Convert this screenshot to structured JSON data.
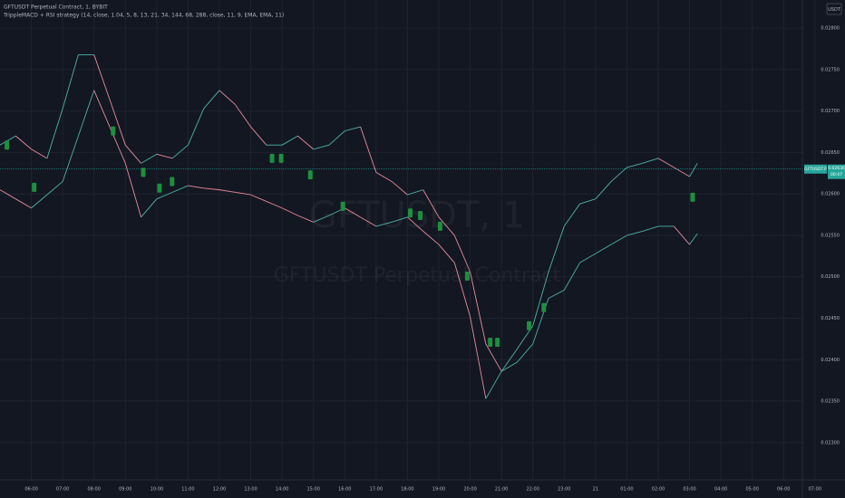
{
  "chart_data": {
    "type": "line",
    "title": "GFTUSDT Perpetual Contract, 1, BYBIT",
    "subtitle": "TrippleMACD + RSI strategy (14, close, 1.04, 5, 8, 13, 21, 34, 144, 68, 288, close, 11, 9, EMA, EMA, 11)",
    "watermark": "GFTUSDT, 1",
    "watermark_sub": "GFTUSDT Perpetual Contract",
    "currency": "USDT",
    "symbol_label": "GFTUSDT.P",
    "last_price": {
      "value": 0.0263,
      "label": "0.02630"
    },
    "countdown": "00:47",
    "x": [
      -1,
      -0.5,
      0,
      0.5,
      1,
      1.5,
      2,
      2.5,
      3,
      3.5,
      4,
      4.5,
      5,
      5.5,
      6,
      6.5,
      7,
      7.5,
      8,
      8.5,
      9,
      9.5,
      10,
      10.5,
      11,
      11.5,
      12,
      12.5,
      13,
      13.5,
      14,
      14.5,
      15,
      15.5,
      16,
      16.5,
      17,
      17.5,
      18,
      18.5,
      19,
      19.5,
      20,
      20.5,
      21,
      21.25
    ],
    "series": [
      {
        "up_color": "#4fb3a9",
        "down_color": "#e58c99",
        "values": [
          0.02659,
          0.0267,
          0.02654,
          0.02643,
          0.02703,
          0.02768,
          0.02768,
          0.02714,
          0.02659,
          0.02637,
          0.02648,
          0.02643,
          0.02659,
          0.02703,
          0.02725,
          0.02708,
          0.02681,
          0.02659,
          0.02659,
          0.0267,
          0.02654,
          0.02659,
          0.02676,
          0.02681,
          0.02626,
          0.02615,
          0.02599,
          0.02605,
          0.02572,
          0.0255,
          0.02506,
          0.02419,
          0.02386,
          0.02413,
          0.02441,
          0.02506,
          0.02561,
          0.02588,
          0.02594,
          0.02615,
          0.02632,
          0.02637,
          0.02643,
          0.02632,
          0.02621,
          0.02637
        ]
      },
      {
        "up_color": "#4fb3a9",
        "down_color": "#e58c99",
        "values": [
          0.02605,
          0.02594,
          0.02583,
          0.02599,
          0.02615,
          0.0267,
          0.02725,
          0.02681,
          0.02637,
          0.02572,
          0.02594,
          0.02602,
          0.0261,
          0.02607,
          0.02605,
          0.02602,
          0.02599,
          0.02591,
          0.02583,
          0.02574,
          0.02566,
          0.02574,
          0.02583,
          0.02572,
          0.02561,
          0.02566,
          0.02572,
          0.02555,
          0.02539,
          0.02517,
          0.02452,
          0.02353,
          0.02386,
          0.02397,
          0.02419,
          0.02474,
          0.02484,
          0.02517,
          0.02528,
          0.02539,
          0.0255,
          0.02555,
          0.02561,
          0.02561,
          0.02539,
          0.02552
        ]
      }
    ],
    "buy_signals": {
      "color": "#1e8f3e",
      "x": [
        -0.78,
        0.09,
        2.61,
        3.57,
        4.09,
        4.49,
        7.68,
        7.97,
        8.9,
        9.94,
        12.09,
        12.41,
        13.04,
        13.91,
        14.64,
        14.87,
        15.88,
        16.35,
        21.1
      ],
      "y": [
        0.02659,
        0.02608,
        0.02676,
        0.02626,
        0.02607,
        0.02615,
        0.02643,
        0.02643,
        0.02623,
        0.02585,
        0.02577,
        0.02574,
        0.02561,
        0.02501,
        0.02421,
        0.02421,
        0.02441,
        0.02463,
        0.02596
      ]
    },
    "xlim": [
      -1,
      24.6
    ],
    "ylim": [
      0.02255,
      0.02834
    ],
    "xticks": [
      {
        "value": 0,
        "label": "06:00"
      },
      {
        "value": 1,
        "label": "07:00"
      },
      {
        "value": 2,
        "label": "08:00"
      },
      {
        "value": 3,
        "label": "09:00"
      },
      {
        "value": 4,
        "label": "10:00"
      },
      {
        "value": 5,
        "label": "11:00"
      },
      {
        "value": 6,
        "label": "12:00"
      },
      {
        "value": 7,
        "label": "13:00"
      },
      {
        "value": 8,
        "label": "14:00"
      },
      {
        "value": 9,
        "label": "15:00"
      },
      {
        "value": 10,
        "label": "16:00"
      },
      {
        "value": 11,
        "label": "17:00"
      },
      {
        "value": 12,
        "label": "18:00"
      },
      {
        "value": 13,
        "label": "19:00"
      },
      {
        "value": 14,
        "label": "20:00"
      },
      {
        "value": 15,
        "label": "21:00"
      },
      {
        "value": 16,
        "label": "22:00"
      },
      {
        "value": 17,
        "label": "23:00"
      },
      {
        "value": 18,
        "label": "21"
      },
      {
        "value": 19,
        "label": "01:00"
      },
      {
        "value": 20,
        "label": "02:00"
      },
      {
        "value": 21,
        "label": "03:00"
      },
      {
        "value": 22,
        "label": "04:00"
      },
      {
        "value": 23,
        "label": "05:00"
      },
      {
        "value": 24,
        "label": "06:00"
      },
      {
        "value": 25,
        "label": "07:00"
      }
    ],
    "yticks": [
      {
        "value": 0.028,
        "label": "0.02800"
      },
      {
        "value": 0.0275,
        "label": "0.02750"
      },
      {
        "value": 0.027,
        "label": "0.02700"
      },
      {
        "value": 0.0265,
        "label": "0.02650"
      },
      {
        "value": 0.026,
        "label": "0.02600"
      },
      {
        "value": 0.0255,
        "label": "0.02550"
      },
      {
        "value": 0.025,
        "label": "0.02500"
      },
      {
        "value": 0.0245,
        "label": "0.02450"
      },
      {
        "value": 0.024,
        "label": "0.02400"
      },
      {
        "value": 0.0235,
        "label": "0.02350"
      },
      {
        "value": 0.023,
        "label": "0.02300"
      }
    ],
    "grid": true
  }
}
